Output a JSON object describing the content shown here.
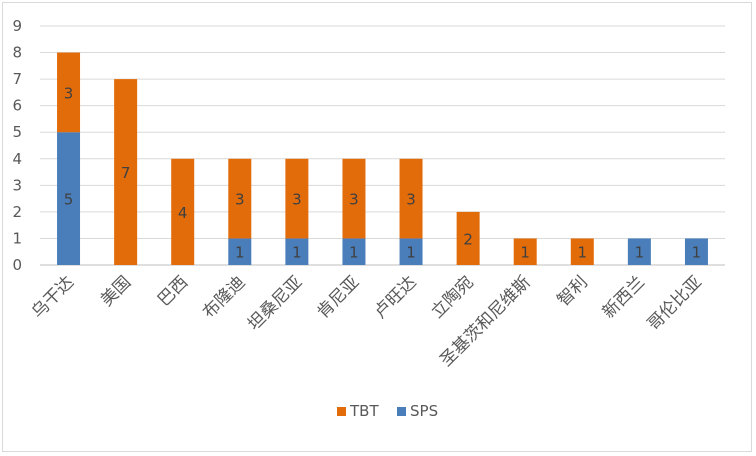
{
  "chart_data": {
    "type": "bar",
    "stacked": true,
    "categories": [
      "乌干达",
      "美国",
      "巴西",
      "布隆迪",
      "坦桑尼亚",
      "肯尼亚",
      "卢旺达",
      "立陶宛",
      "圣基茨和尼维斯",
      "智利",
      "新西兰",
      "哥伦比亚"
    ],
    "series": [
      {
        "name": "SPS",
        "color": "#4a7ebb",
        "values": [
          5,
          0,
          0,
          1,
          1,
          1,
          1,
          0,
          0,
          0,
          1,
          1
        ]
      },
      {
        "name": "TBT",
        "color": "#e36c0a",
        "values": [
          3,
          7,
          4,
          3,
          3,
          3,
          3,
          2,
          1,
          1,
          0,
          0
        ]
      }
    ],
    "legend_order": [
      "TBT",
      "SPS"
    ],
    "yticks": [
      0,
      1,
      2,
      3,
      4,
      5,
      6,
      7,
      8,
      9
    ],
    "ylim": [
      0,
      9
    ],
    "grid": true,
    "legend_position": "bottom",
    "title": "",
    "xlabel": "",
    "ylabel": ""
  }
}
